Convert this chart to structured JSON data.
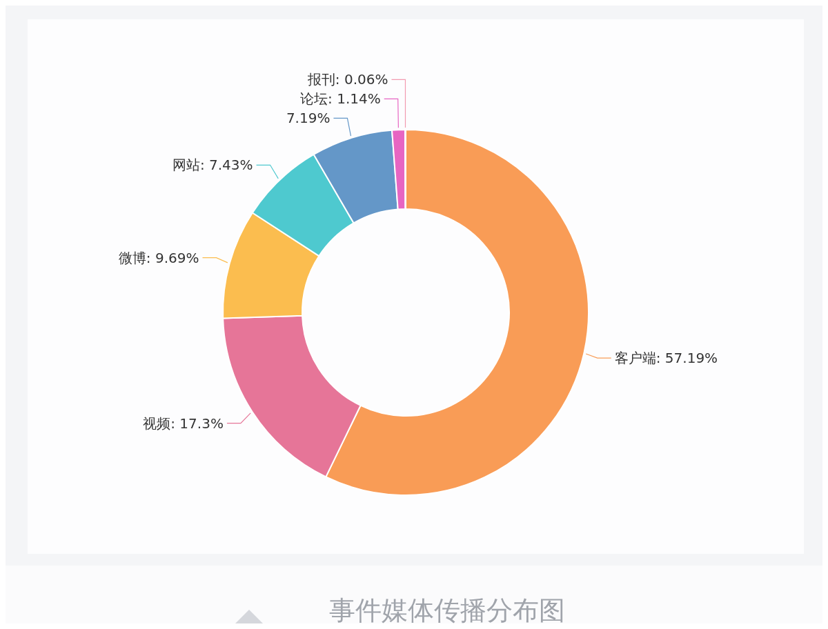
{
  "chart_data": {
    "type": "donut",
    "title": "事件媒体传播分布图",
    "categories": [
      "客户端",
      "视频",
      "微博",
      "网站",
      null,
      "论坛",
      "报刊"
    ],
    "values": [
      57.19,
      17.3,
      9.69,
      7.43,
      7.19,
      1.14,
      0.06
    ],
    "value_labels": [
      "57.19%",
      "17.3%",
      "9.69%",
      "7.43%",
      "7.19%",
      "1.14%",
      "0.06%"
    ],
    "colors": [
      "#f99c56",
      "#e67598",
      "#fbbd4f",
      "#4ec9cf",
      "#6497c8",
      "#e765c2",
      "#f29bb0"
    ]
  }
}
